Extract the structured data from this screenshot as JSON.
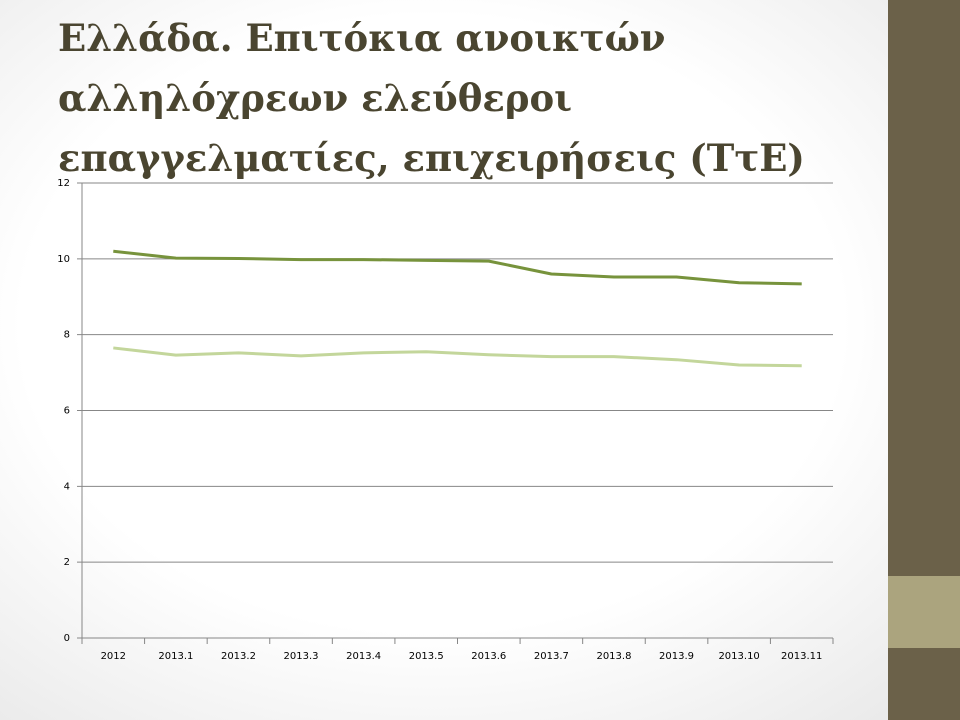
{
  "chart_data": {
    "type": "line",
    "title": [
      "Ελλάδα. Επιτόκια ανοικτών",
      "αλληλόχρεων ελεύθεροι",
      "επαγγελματίες, επιχειρήσεις (ΤτΕ)"
    ],
    "categories": [
      "2012",
      "2013.1",
      "2013.2",
      "2013.3",
      "2013.4",
      "2013.5",
      "2013.6",
      "2013.7",
      "2013.8",
      "2013.9",
      "2013.10",
      "2013.11"
    ],
    "series": [
      {
        "color": "#77933c",
        "values": [
          10.2,
          10.02,
          10.01,
          9.98,
          9.98,
          9.96,
          9.94,
          9.6,
          9.52,
          9.52,
          9.37,
          9.34
        ]
      },
      {
        "color": "#c3d69b",
        "values": [
          7.65,
          7.46,
          7.52,
          7.44,
          7.52,
          7.55,
          7.47,
          7.42,
          7.42,
          7.34,
          7.2,
          7.18
        ]
      }
    ],
    "ylim": [
      0,
      12
    ],
    "yticks": [
      0,
      2,
      4,
      6,
      8,
      10,
      12
    ],
    "grid": true
  }
}
